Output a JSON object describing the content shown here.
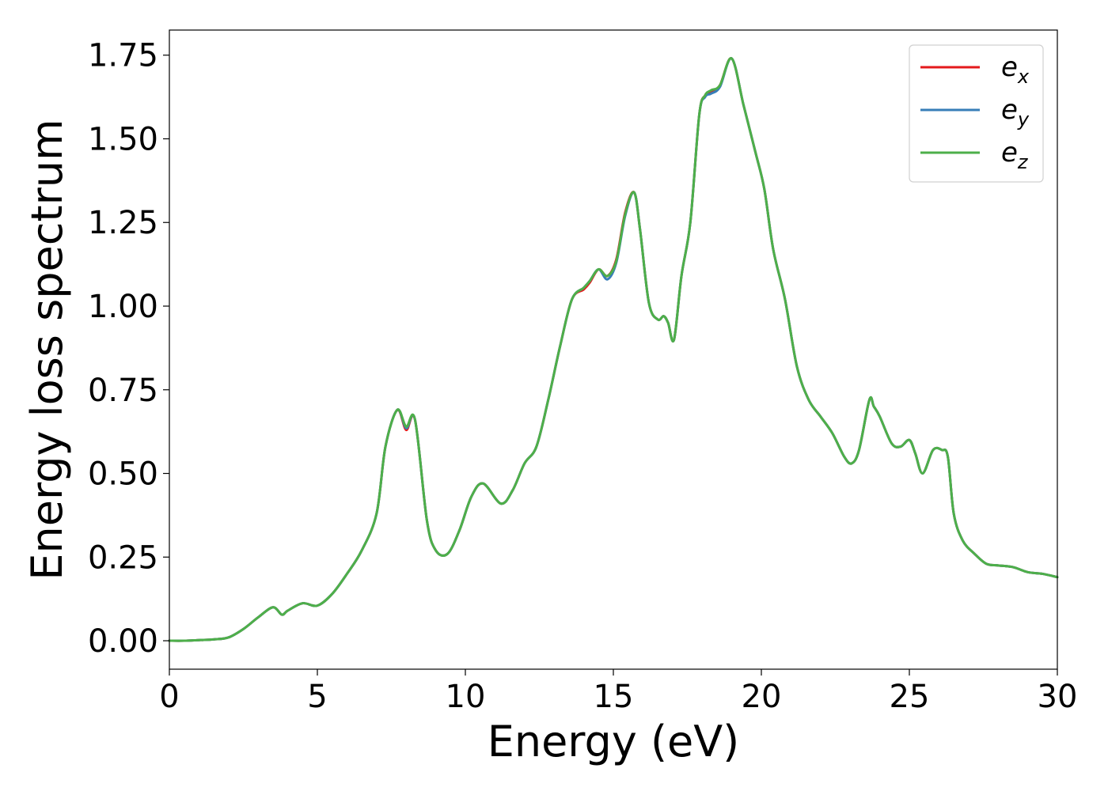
{
  "chart_data": {
    "type": "line",
    "xlabel": "Energy (eV)",
    "ylabel": "Energy loss spectrum",
    "xlim": [
      0,
      30
    ],
    "ylim": [
      -0.085,
      1.825
    ],
    "x_ticks": [
      0,
      5,
      10,
      15,
      20,
      25,
      30
    ],
    "y_ticks": [
      0.0,
      0.25,
      0.5,
      0.75,
      1.0,
      1.25,
      1.5,
      1.75
    ],
    "x_tick_labels": [
      "0",
      "5",
      "10",
      "15",
      "20",
      "25",
      "30"
    ],
    "y_tick_labels": [
      "0.00",
      "0.25",
      "0.50",
      "0.75",
      "1.00",
      "1.25",
      "1.50",
      "1.75"
    ],
    "grid": false,
    "legend_position": "top-right",
    "x": [
      0,
      0.5,
      1,
      1.5,
      2,
      2.5,
      3,
      3.5,
      3.8,
      4,
      4.5,
      5,
      5.5,
      6,
      6.5,
      7,
      7.3,
      7.7,
      8.0,
      8.3,
      8.7,
      9.0,
      9.4,
      9.8,
      10.2,
      10.6,
      11.2,
      11.6,
      12.0,
      12.4,
      12.8,
      13.2,
      13.6,
      14.0,
      14.2,
      14.5,
      14.8,
      15.1,
      15.4,
      15.7,
      15.9,
      16.2,
      16.5,
      16.7,
      16.85,
      17.05,
      17.3,
      17.6,
      17.9,
      18.1,
      18.3,
      18.6,
      19.0,
      19.4,
      19.8,
      20.1,
      20.4,
      20.8,
      21.2,
      21.6,
      22.0,
      22.4,
      22.8,
      23.05,
      23.3,
      23.65,
      23.8,
      24.0,
      24.4,
      24.7,
      25.0,
      25.2,
      25.45,
      25.8,
      26.1,
      26.3,
      26.5,
      26.8,
      27.2,
      27.6,
      28.0,
      28.5,
      29.0,
      29.5,
      30.0
    ],
    "series": [
      {
        "name": "e_x",
        "legend_base": "e",
        "legend_sub": "x",
        "color": "#e41a1c",
        "values": [
          0.0,
          0.0,
          0.002,
          0.004,
          0.01,
          0.035,
          0.07,
          0.1,
          0.078,
          0.09,
          0.112,
          0.105,
          0.14,
          0.2,
          0.27,
          0.38,
          0.58,
          0.69,
          0.63,
          0.66,
          0.36,
          0.27,
          0.26,
          0.33,
          0.43,
          0.47,
          0.41,
          0.45,
          0.53,
          0.58,
          0.72,
          0.88,
          1.02,
          1.05,
          1.07,
          1.11,
          1.09,
          1.14,
          1.28,
          1.34,
          1.23,
          1.01,
          0.96,
          0.97,
          0.95,
          0.9,
          1.09,
          1.25,
          1.57,
          1.63,
          1.64,
          1.66,
          1.74,
          1.6,
          1.46,
          1.35,
          1.17,
          1.02,
          0.82,
          0.72,
          0.67,
          0.62,
          0.55,
          0.53,
          0.57,
          0.72,
          0.7,
          0.67,
          0.59,
          0.58,
          0.6,
          0.56,
          0.5,
          0.57,
          0.57,
          0.55,
          0.38,
          0.3,
          0.26,
          0.23,
          0.225,
          0.22,
          0.205,
          0.2,
          0.19
        ]
      },
      {
        "name": "e_y",
        "legend_base": "e",
        "legend_sub": "y",
        "color": "#377eb8",
        "values": [
          0.0,
          0.0,
          0.002,
          0.004,
          0.01,
          0.035,
          0.07,
          0.1,
          0.078,
          0.09,
          0.112,
          0.105,
          0.14,
          0.2,
          0.27,
          0.38,
          0.58,
          0.69,
          0.635,
          0.66,
          0.36,
          0.27,
          0.26,
          0.33,
          0.43,
          0.47,
          0.41,
          0.45,
          0.53,
          0.58,
          0.72,
          0.88,
          1.02,
          1.055,
          1.075,
          1.11,
          1.08,
          1.13,
          1.27,
          1.34,
          1.23,
          1.01,
          0.96,
          0.97,
          0.95,
          0.9,
          1.09,
          1.25,
          1.57,
          1.625,
          1.635,
          1.655,
          1.74,
          1.6,
          1.46,
          1.35,
          1.17,
          1.02,
          0.82,
          0.72,
          0.67,
          0.62,
          0.55,
          0.53,
          0.57,
          0.72,
          0.7,
          0.67,
          0.59,
          0.58,
          0.6,
          0.56,
          0.5,
          0.57,
          0.57,
          0.55,
          0.38,
          0.3,
          0.26,
          0.23,
          0.225,
          0.22,
          0.205,
          0.2,
          0.19
        ]
      },
      {
        "name": "e_z",
        "legend_base": "e",
        "legend_sub": "z",
        "color": "#4daf4a",
        "values": [
          0.0,
          0.0,
          0.002,
          0.004,
          0.01,
          0.035,
          0.07,
          0.1,
          0.078,
          0.09,
          0.112,
          0.105,
          0.14,
          0.2,
          0.27,
          0.38,
          0.58,
          0.69,
          0.64,
          0.66,
          0.36,
          0.27,
          0.26,
          0.33,
          0.43,
          0.47,
          0.41,
          0.45,
          0.53,
          0.58,
          0.72,
          0.88,
          1.02,
          1.055,
          1.075,
          1.11,
          1.09,
          1.135,
          1.275,
          1.34,
          1.23,
          1.01,
          0.96,
          0.97,
          0.95,
          0.9,
          1.09,
          1.25,
          1.57,
          1.63,
          1.645,
          1.66,
          1.74,
          1.6,
          1.46,
          1.35,
          1.17,
          1.02,
          0.82,
          0.72,
          0.67,
          0.62,
          0.55,
          0.53,
          0.57,
          0.72,
          0.7,
          0.67,
          0.59,
          0.58,
          0.6,
          0.56,
          0.5,
          0.57,
          0.57,
          0.55,
          0.38,
          0.3,
          0.26,
          0.23,
          0.225,
          0.22,
          0.205,
          0.2,
          0.19
        ]
      }
    ]
  }
}
